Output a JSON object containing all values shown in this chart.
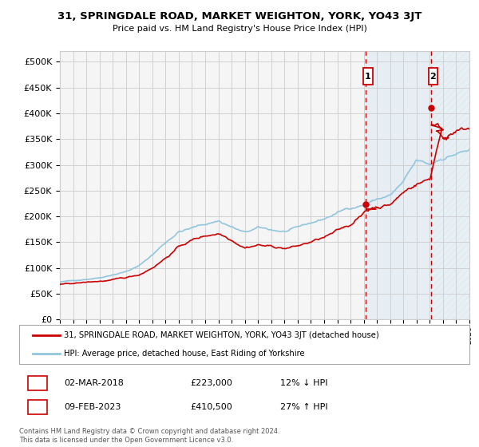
{
  "title": "31, SPRINGDALE ROAD, MARKET WEIGHTON, YORK, YO43 3JT",
  "subtitle": "Price paid vs. HM Land Registry's House Price Index (HPI)",
  "hpi_label": "HPI: Average price, detached house, East Riding of Yorkshire",
  "property_label": "31, SPRINGDALE ROAD, MARKET WEIGHTON, YORK, YO43 3JT (detached house)",
  "footnote": "Contains HM Land Registry data © Crown copyright and database right 2024.\nThis data is licensed under the Open Government Licence v3.0.",
  "sale1_date": "02-MAR-2018",
  "sale1_price": "£223,000",
  "sale1_hpi": "12% ↓ HPI",
  "sale2_date": "09-FEB-2023",
  "sale2_price": "£410,500",
  "sale2_hpi": "27% ↑ HPI",
  "sale1_x": 2018.17,
  "sale2_x": 2023.11,
  "sale1_y": 223000,
  "sale2_y": 410500,
  "ylim": [
    0,
    520000
  ],
  "xlim_left": 1995.0,
  "xlim_right": 2026.0,
  "hpi_color": "#92c5de",
  "property_color": "#cc0000",
  "vline_color": "#cc0000",
  "shade_color": "#ddeeff",
  "background_color": "#ffffff",
  "plot_bg_color": "#f5f5f5",
  "grid_color": "#cccccc",
  "yticks": [
    0,
    50000,
    100000,
    150000,
    200000,
    250000,
    300000,
    350000,
    400000,
    450000,
    500000
  ]
}
